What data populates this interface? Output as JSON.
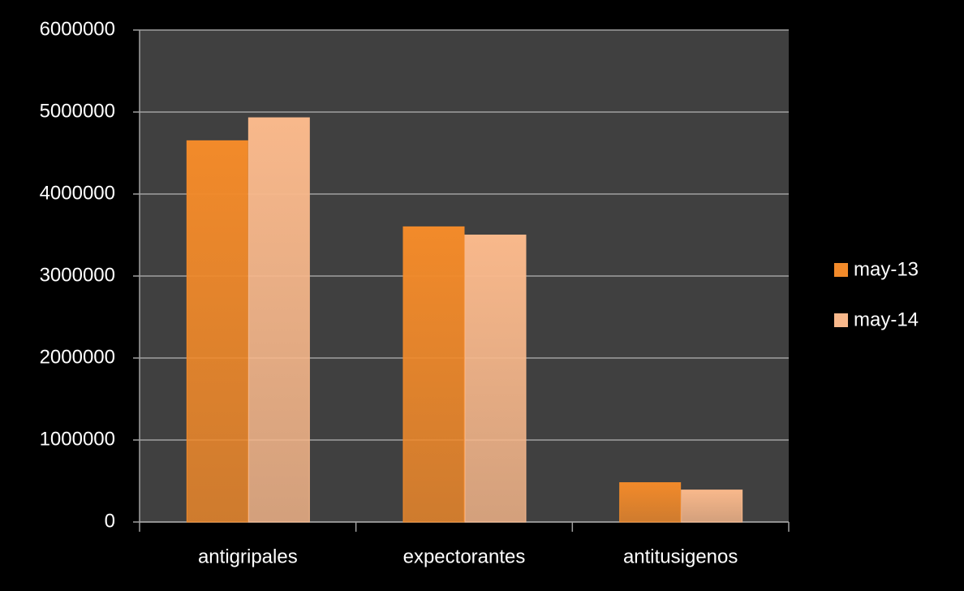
{
  "chart_data": {
    "type": "bar",
    "categories": [
      "antigripales",
      "expectorantes",
      "antitusigenos"
    ],
    "series": [
      {
        "name": "may-13",
        "color": "#f28a2a",
        "values": [
          4650000,
          3600000,
          480000
        ]
      },
      {
        "name": "may-14",
        "color": "#f8b88b",
        "values": [
          4930000,
          3500000,
          390000
        ]
      }
    ],
    "ylim": [
      0,
      6000000
    ],
    "yticks": [
      0,
      1000000,
      2000000,
      3000000,
      4000000,
      5000000,
      6000000
    ],
    "grid": true,
    "legend": "right"
  }
}
